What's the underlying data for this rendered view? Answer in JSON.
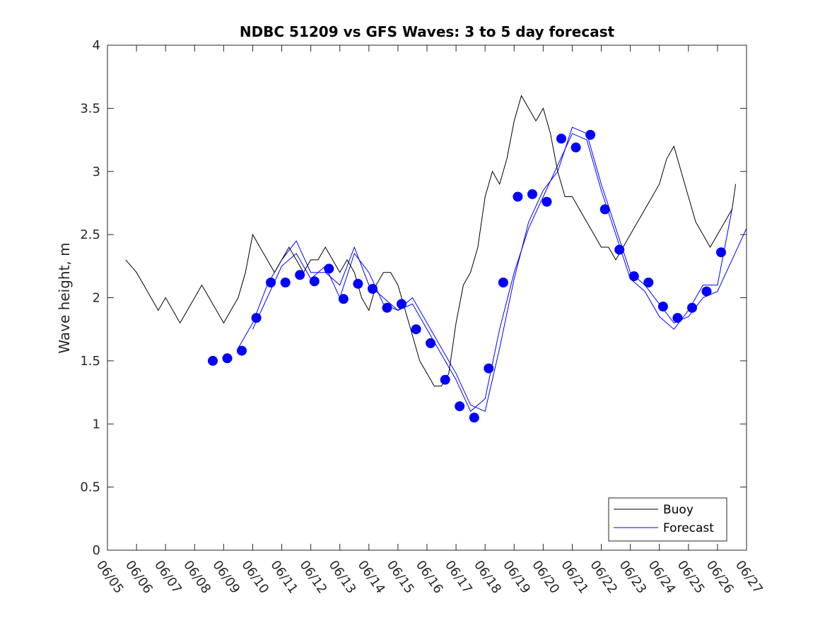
{
  "chart_data": {
    "type": "line",
    "title": "NDBC 51209 vs GFS Waves: 3 to 5 day forecast",
    "xlabel": "",
    "ylabel": "Wave height, m",
    "x_tick_labels": [
      "06/05",
      "06/06",
      "06/07",
      "06/08",
      "06/09",
      "06/10",
      "06/11",
      "06/12",
      "06/13",
      "06/14",
      "06/15",
      "06/16",
      "06/17",
      "06/18",
      "06/19",
      "06/20",
      "06/21",
      "06/22",
      "06/23",
      "06/24",
      "06/25",
      "06/26",
      "06/27"
    ],
    "y_ticks": [
      "0",
      "0.5",
      "1",
      "1.5",
      "2",
      "2.5",
      "3",
      "3.5",
      "4"
    ],
    "ylim": [
      0,
      4
    ],
    "grid": false,
    "legend": {
      "position": "bottom-right",
      "entries": [
        "Buoy",
        "Forecast"
      ]
    },
    "colors": {
      "buoy": "#000000",
      "forecast": "#0000ff",
      "marker": "#0000ff"
    },
    "buoy": {
      "name": "Buoy",
      "x": [
        "06/05 15:00",
        "06/06 00:00",
        "06/06 06:00",
        "06/06 12:00",
        "06/06 18:00",
        "06/07 00:00",
        "06/07 06:00",
        "06/07 12:00",
        "06/07 18:00",
        "06/08 00:00",
        "06/08 06:00",
        "06/08 12:00",
        "06/08 18:00",
        "06/09 00:00",
        "06/09 06:00",
        "06/09 12:00",
        "06/09 18:00",
        "06/10 00:00",
        "06/10 06:00",
        "06/10 12:00",
        "06/10 18:00",
        "06/11 00:00",
        "06/11 06:00",
        "06/11 12:00",
        "06/11 18:00",
        "06/12 00:00",
        "06/12 06:00",
        "06/12 12:00",
        "06/12 18:00",
        "06/13 00:00",
        "06/13 06:00",
        "06/13 12:00",
        "06/13 18:00",
        "06/14 00:00",
        "06/14 06:00",
        "06/14 12:00",
        "06/14 18:00",
        "06/15 00:00",
        "06/15 06:00",
        "06/15 12:00",
        "06/15 18:00",
        "06/16 00:00",
        "06/16 06:00",
        "06/16 12:00",
        "06/16 18:00",
        "06/17 00:00",
        "06/17 06:00",
        "06/17 12:00",
        "06/17 18:00",
        "06/18 00:00",
        "06/18 06:00",
        "06/18 12:00",
        "06/18 18:00",
        "06/19 00:00",
        "06/19 06:00",
        "06/19 12:00",
        "06/19 18:00",
        "06/20 00:00",
        "06/20 06:00",
        "06/20 12:00",
        "06/20 18:00",
        "06/21 00:00",
        "06/21 06:00",
        "06/21 12:00",
        "06/21 18:00",
        "06/22 00:00",
        "06/22 06:00",
        "06/22 12:00",
        "06/22 18:00",
        "06/23 00:00",
        "06/23 06:00",
        "06/23 12:00",
        "06/23 18:00",
        "06/24 00:00",
        "06/24 06:00",
        "06/24 12:00",
        "06/24 18:00",
        "06/25 00:00",
        "06/25 06:00",
        "06/25 12:00",
        "06/25 18:00",
        "06/26 00:00",
        "06/26 06:00",
        "06/26 12:00",
        "06/26 15:00"
      ],
      "y": [
        2.3,
        2.2,
        2.1,
        2.0,
        1.9,
        2.0,
        1.9,
        1.8,
        1.9,
        2.0,
        2.1,
        2.0,
        1.9,
        1.8,
        1.9,
        2.0,
        2.2,
        2.5,
        2.4,
        2.3,
        2.2,
        2.3,
        2.4,
        2.3,
        2.2,
        2.3,
        2.3,
        2.4,
        2.3,
        2.2,
        2.3,
        2.2,
        2.0,
        1.9,
        2.1,
        2.2,
        2.2,
        2.1,
        1.9,
        1.7,
        1.5,
        1.4,
        1.3,
        1.3,
        1.4,
        1.8,
        2.1,
        2.2,
        2.4,
        2.8,
        3.0,
        2.9,
        3.1,
        3.4,
        3.6,
        3.5,
        3.4,
        3.5,
        3.3,
        3.0,
        2.8,
        2.8,
        2.7,
        2.6,
        2.5,
        2.4,
        2.4,
        2.3,
        2.4,
        2.5,
        2.6,
        2.7,
        2.8,
        2.9,
        3.1,
        3.2,
        3.0,
        2.8,
        2.6,
        2.5,
        2.4,
        2.5,
        2.6,
        2.7,
        2.9
      ]
    },
    "forecast_markers": {
      "name": "Forecast",
      "x": [
        "06/08 15:00",
        "06/09 03:00",
        "06/09 15:00",
        "06/10 03:00",
        "06/10 15:00",
        "06/11 03:00",
        "06/11 15:00",
        "06/12 03:00",
        "06/12 15:00",
        "06/13 03:00",
        "06/13 15:00",
        "06/14 03:00",
        "06/14 15:00",
        "06/15 03:00",
        "06/15 15:00",
        "06/16 03:00",
        "06/16 15:00",
        "06/17 03:00",
        "06/17 15:00",
        "06/18 03:00",
        "06/18 15:00",
        "06/19 03:00",
        "06/19 15:00",
        "06/20 03:00",
        "06/20 15:00",
        "06/21 03:00",
        "06/21 15:00",
        "06/22 03:00",
        "06/22 15:00",
        "06/23 03:00",
        "06/23 15:00",
        "06/24 03:00",
        "06/24 15:00",
        "06/25 03:00",
        "06/25 15:00",
        "06/26 03:00"
      ],
      "y": [
        1.5,
        1.52,
        1.58,
        1.84,
        2.12,
        2.12,
        2.18,
        2.13,
        2.23,
        1.99,
        2.11,
        2.07,
        1.92,
        1.95,
        1.75,
        1.64,
        1.35,
        1.14,
        1.05,
        1.44,
        2.12,
        2.8,
        2.82,
        2.76,
        3.26,
        3.19,
        3.29,
        2.7,
        2.38,
        2.17,
        2.12,
        1.93,
        1.84,
        1.92,
        2.05,
        2.36
      ]
    },
    "forecast_runs": [
      {
        "x": [
          "06/09 12:00",
          "06/10 00:00",
          "06/10 12:00",
          "06/11 00:00",
          "06/11 12:00",
          "06/12 00:00",
          "06/12 12:00",
          "06/13 00:00",
          "06/13 12:00",
          "06/14 00:00",
          "06/14 12:00",
          "06/15 00:00",
          "06/15 12:00",
          "06/16 00:00",
          "06/16 12:00",
          "06/17 00:00",
          "06/17 12:00",
          "06/18 00:00",
          "06/18 12:00",
          "06/19 00:00",
          "06/19 12:00",
          "06/20 00:00",
          "06/20 12:00",
          "06/21 00:00",
          "06/21 12:00",
          "06/22 00:00",
          "06/22 12:00",
          "06/23 00:00",
          "06/23 12:00",
          "06/24 00:00",
          "06/24 12:00",
          "06/25 00:00",
          "06/25 12:00",
          "06/26 00:00",
          "06/26 12:00",
          "06/27 00:00"
        ],
        "y": [
          1.6,
          1.8,
          2.1,
          2.3,
          2.45,
          2.2,
          2.2,
          2.1,
          2.4,
          2.1,
          2.0,
          1.9,
          2.0,
          1.8,
          1.6,
          1.4,
          1.15,
          1.1,
          1.6,
          2.15,
          2.6,
          2.85,
          3.0,
          3.35,
          3.3,
          2.9,
          2.55,
          2.2,
          2.1,
          1.95,
          1.8,
          1.85,
          2.0,
          2.05,
          2.3,
          2.55
        ]
      },
      {
        "x": [
          "06/10 00:00",
          "06/10 12:00",
          "06/11 00:00",
          "06/11 12:00",
          "06/12 00:00",
          "06/12 12:00",
          "06/13 00:00",
          "06/13 12:00",
          "06/14 00:00",
          "06/14 12:00",
          "06/15 00:00",
          "06/15 12:00",
          "06/16 00:00",
          "06/16 12:00",
          "06/17 00:00",
          "06/17 12:00",
          "06/18 00:00",
          "06/18 12:00",
          "06/19 00:00",
          "06/19 12:00",
          "06/20 00:00",
          "06/20 12:00",
          "06/21 00:00",
          "06/21 12:00",
          "06/22 00:00",
          "06/22 12:00",
          "06/23 00:00",
          "06/23 12:00",
          "06/24 00:00",
          "06/24 12:00",
          "06/25 00:00",
          "06/25 12:00",
          "06/26 00:00",
          "06/26 12:00"
        ],
        "y": [
          1.75,
          2.0,
          2.25,
          2.35,
          2.15,
          2.25,
          2.0,
          2.35,
          2.2,
          1.95,
          1.9,
          1.95,
          1.75,
          1.55,
          1.35,
          1.1,
          1.2,
          1.75,
          2.2,
          2.55,
          2.8,
          3.05,
          3.3,
          3.25,
          2.85,
          2.5,
          2.15,
          2.05,
          1.85,
          1.75,
          1.9,
          2.1,
          2.1,
          2.7
        ]
      }
    ]
  }
}
